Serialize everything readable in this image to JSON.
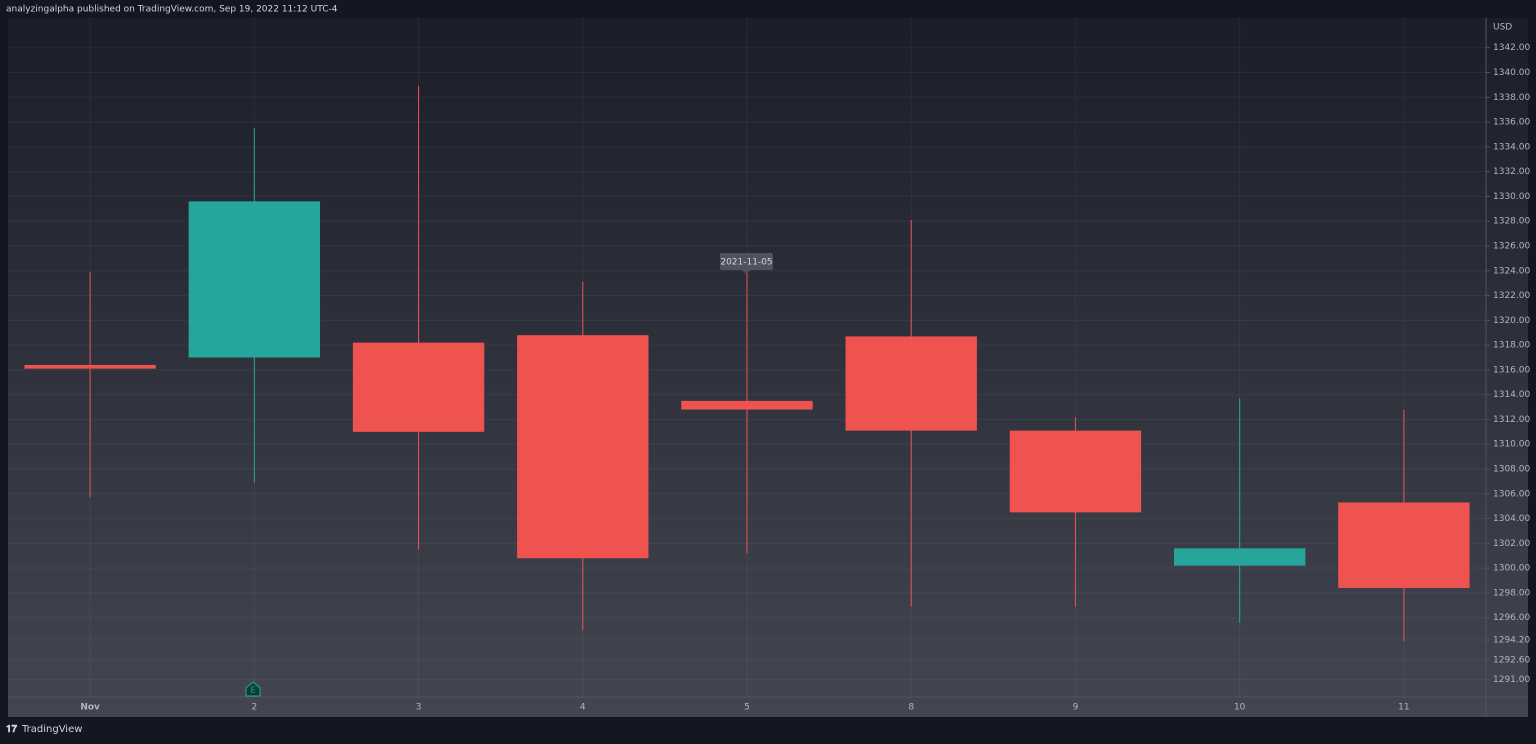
{
  "header": "analyzingalpha published on TradingView.com, Sep 19, 2022 11:12 UTC-4",
  "footer": "TradingView",
  "chart_data": {
    "type": "candlestick",
    "y_axis_label": "USD",
    "annotation": "2021-11-05",
    "event_marker": "E",
    "categories": [
      "Nov",
      "2",
      "3",
      "4",
      "5",
      "8",
      "9",
      "10",
      "11"
    ],
    "open": [
      1316.4,
      1317.0,
      1318.2,
      1318.8,
      1313.5,
      1318.7,
      1311.1,
      1300.2,
      1305.3
    ],
    "high": [
      1323.9,
      1335.5,
      1338.9,
      1323.1,
      1323.8,
      1328.1,
      1312.2,
      1313.7,
      1312.8
    ],
    "low": [
      1305.7,
      1306.9,
      1301.5,
      1295.0,
      1301.2,
      1296.9,
      1296.9,
      1295.6,
      1294.1
    ],
    "close": [
      1316.1,
      1329.6,
      1311.0,
      1300.8,
      1312.8,
      1311.1,
      1304.5,
      1301.6,
      1298.4
    ],
    "up_color": "#26a69a",
    "down_color": "#ef5350",
    "ylim": [
      1289.6,
      1344.4
    ],
    "yticks": [
      {
        "value": 1342,
        "label": "1342.00"
      },
      {
        "value": 1340,
        "label": "1340.00"
      },
      {
        "value": 1338,
        "label": "1338.00"
      },
      {
        "value": 1336,
        "label": "1336.00"
      },
      {
        "value": 1334,
        "label": "1334.00"
      },
      {
        "value": 1332,
        "label": "1332.00"
      },
      {
        "value": 1330,
        "label": "1330.00"
      },
      {
        "value": 1328,
        "label": "1328.00"
      },
      {
        "value": 1326,
        "label": "1326.00"
      },
      {
        "value": 1324,
        "label": "1324.00"
      },
      {
        "value": 1322,
        "label": "1322.00"
      },
      {
        "value": 1320,
        "label": "1320.00"
      },
      {
        "value": 1318,
        "label": "1318.00"
      },
      {
        "value": 1316,
        "label": "1316.00"
      },
      {
        "value": 1314,
        "label": "1314.00"
      },
      {
        "value": 1312,
        "label": "1312.00"
      },
      {
        "value": 1310,
        "label": "1310.00"
      },
      {
        "value": 1308,
        "label": "1308.00"
      },
      {
        "value": 1306,
        "label": "1306.00"
      },
      {
        "value": 1304,
        "label": "1304.00"
      },
      {
        "value": 1302,
        "label": "1302.00"
      },
      {
        "value": 1300,
        "label": "1300.00"
      },
      {
        "value": 1298,
        "label": "1298.00"
      },
      {
        "value": 1296,
        "label": "1296.00"
      },
      {
        "value": 1294.2,
        "label": "1294.20"
      },
      {
        "value": 1292.6,
        "label": "1292.60"
      },
      {
        "value": 1291,
        "label": "1291.00"
      }
    ],
    "grid": true
  }
}
